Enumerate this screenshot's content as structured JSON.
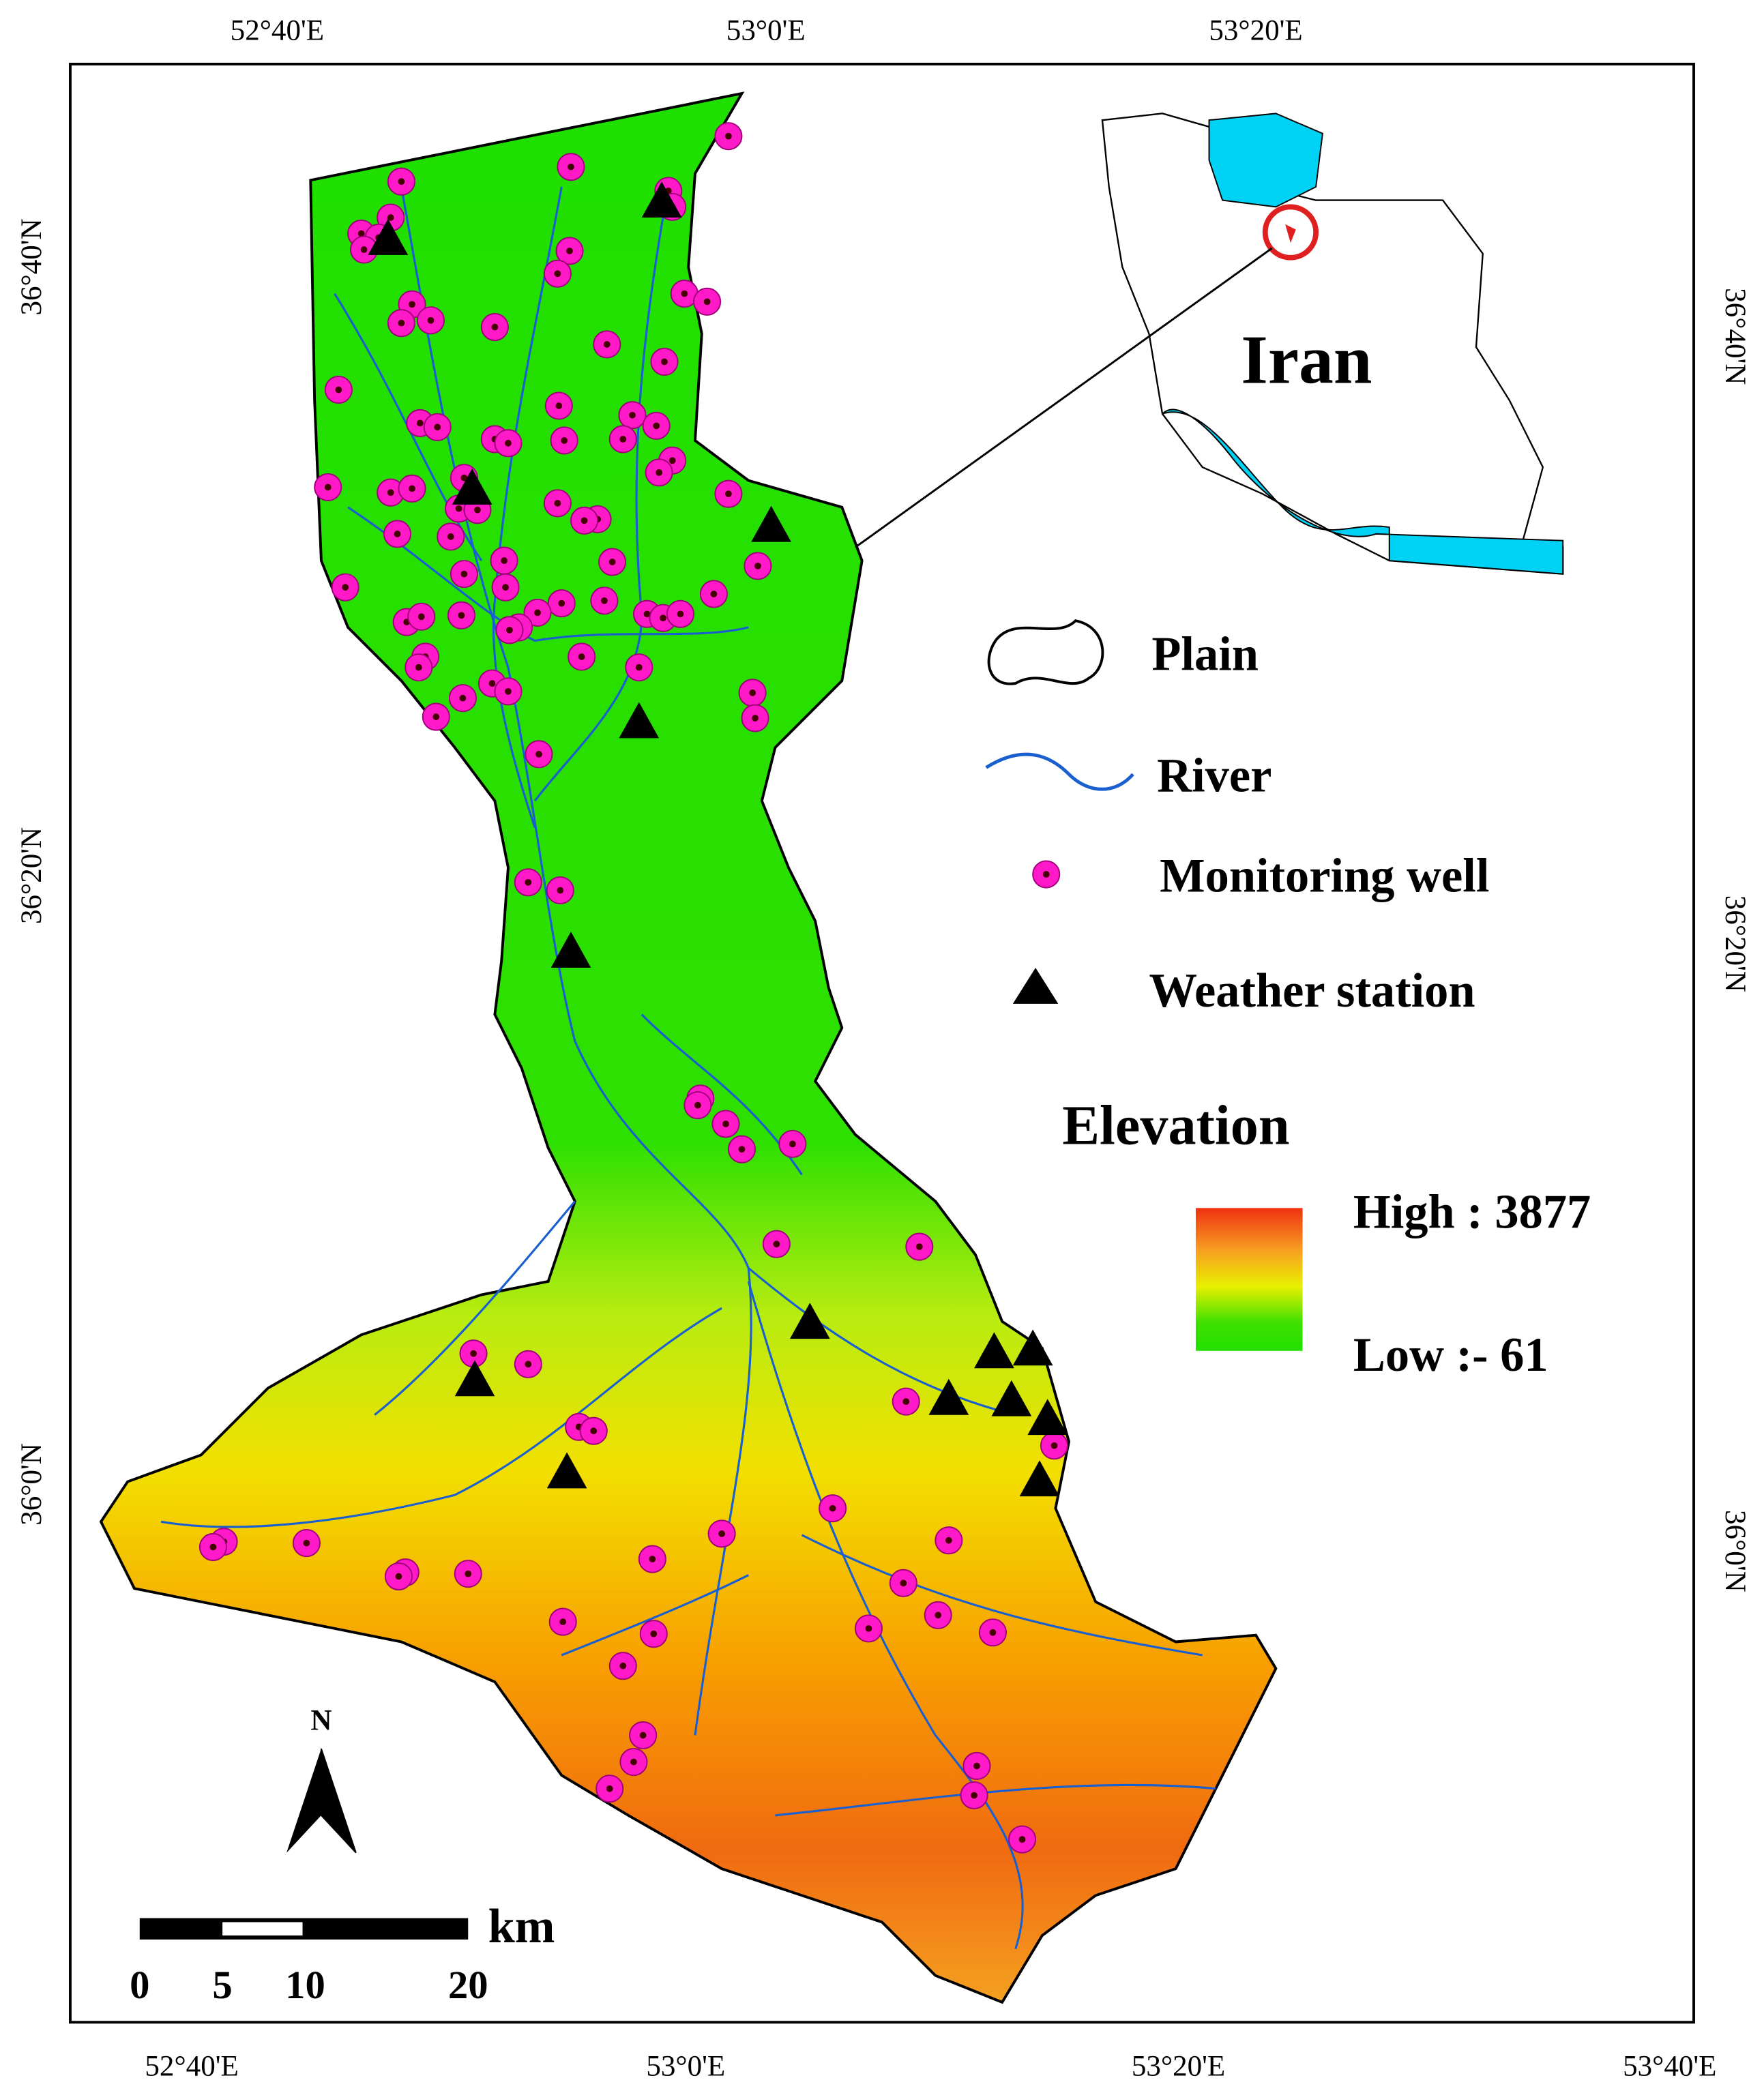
{
  "map": {
    "top_axis": [
      "52°40'E",
      "53°0'E",
      "53°20'E"
    ],
    "bottom_axis": [
      "52°40'E",
      "53°0'E",
      "53°20'E",
      "53°40'E"
    ],
    "left_axis": [
      "36°40'N",
      "36°20'N",
      "36°0'N"
    ],
    "right_axis": [
      "36°40'N",
      "36°20'N",
      "36°0'N"
    ],
    "inset_label": "Iran",
    "north": "N",
    "scale": {
      "unit": "km",
      "labels": [
        "0",
        "5",
        "10",
        "20"
      ]
    },
    "legend": {
      "items": [
        "Plain",
        "River",
        "Monitoring well",
        "Weather station"
      ],
      "elevation": {
        "title": "Elevation",
        "high": "High : 3877",
        "low": "Low :- 61"
      }
    }
  }
}
